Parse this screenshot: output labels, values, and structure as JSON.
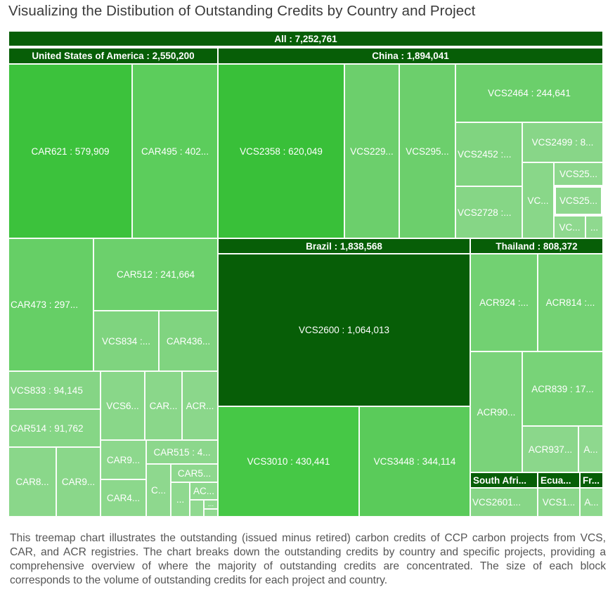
{
  "title": "Visualizing the Distibution of Outstanding Credits by Country and Project",
  "description": "This treemap chart illustrates the outstanding (issued minus retired) carbon credits of CCP carbon projects from VCS, CAR, and ACR registries. The chart breaks down the outstanding credits by country and specific projects, providing a comprehensive overview of where the majority of outstanding credits are concentrated. The size of each block corresponds to the volume of outstanding credits for each project and country.",
  "chart_data": {
    "type": "treemap",
    "root": {
      "label": "All : 7,252,761",
      "name": "All",
      "value": 7252761
    },
    "color_scale": {
      "low": "#8ed18e",
      "mid": "#3fc93f",
      "high": "#075e07"
    },
    "countries": [
      {
        "name": "United States of America",
        "label": "United States of America : 2,550,200",
        "value": 2550200,
        "projects": [
          {
            "label": "CAR621 : 579,909",
            "name": "CAR621",
            "value": 579909,
            "color": "#3cc23c"
          },
          {
            "label": "CAR495 : 402...",
            "name": "CAR495",
            "value": 402000,
            "color": "#5ccd5c"
          },
          {
            "label": "CAR473 : 297...",
            "name": "CAR473",
            "value": 297000,
            "color": "#66cf66"
          },
          {
            "label": "CAR512 : 241,664",
            "name": "CAR512",
            "value": 241664,
            "color": "#6cd06c"
          },
          {
            "label": "VCS834 :...",
            "name": "VCS834",
            "value": 121000,
            "color": "#7fd47f"
          },
          {
            "label": "CAR436...",
            "name": "CAR436",
            "value": 116000,
            "color": "#80d480"
          },
          {
            "label": "VCS833 : 94,145",
            "name": "VCS833",
            "value": 94145,
            "color": "#85d585"
          },
          {
            "label": "CAR514 : 91,762",
            "name": "CAR514",
            "value": 91762,
            "color": "#86d686"
          },
          {
            "label": "VCS6...",
            "name": "VCS6",
            "value": 73000,
            "color": "#89d789"
          },
          {
            "label": "CAR...",
            "name": "CAR",
            "value": 61000,
            "color": "#8ad78a"
          },
          {
            "label": "ACR...",
            "name": "ACR",
            "value": 54000,
            "color": "#8bd78b"
          },
          {
            "label": "CAR8...",
            "name": "CAR8",
            "value": 64000,
            "color": "#8ad78a"
          },
          {
            "label": "CAR9...",
            "name": "CAR9",
            "value": 60000,
            "color": "#8ad78a"
          },
          {
            "label": "CAR9...",
            "name": "CAR9",
            "value": 35000,
            "color": "#8dd88d"
          },
          {
            "label": "CAR515 : 4...",
            "name": "CAR515",
            "value": 44000,
            "color": "#8cd78c"
          },
          {
            "label": "CAR4...",
            "name": "CAR4",
            "value": 41000,
            "color": "#8cd88c"
          },
          {
            "label": "C...",
            "name": "C",
            "value": 21000,
            "color": "#8ed88e"
          },
          {
            "label": "CAR5...",
            "name": "CAR5",
            "value": 21000,
            "color": "#8ed88e"
          },
          {
            "label": "...",
            "name": "",
            "value": 12000,
            "color": "#8fd98f"
          },
          {
            "label": "AC...",
            "name": "AC",
            "value": 10000,
            "color": "#8fd98f"
          },
          {
            "label": "",
            "name": "",
            "value": 4000,
            "color": "#90d990"
          },
          {
            "label": "...",
            "name": "",
            "value": 3000,
            "color": "#90d990"
          },
          {
            "label": "",
            "name": "",
            "value": 3000,
            "color": "#90d990"
          }
        ]
      },
      {
        "name": "China",
        "label": "China : 1,894,041",
        "value": 1894041,
        "projects": [
          {
            "label": "VCS2358 : 620,049",
            "name": "VCS2358",
            "value": 620049,
            "color": "#39c039"
          },
          {
            "label": "VCS229...",
            "name": "VCS229",
            "value": 240000,
            "color": "#6ccf6c"
          },
          {
            "label": "VCS295...",
            "name": "VCS295",
            "value": 240000,
            "color": "#6ccf6c"
          },
          {
            "label": "VCS2464 : 244,641",
            "name": "VCS2464",
            "value": 244641,
            "color": "#6bcf6b"
          },
          {
            "label": "VCS2452 :...",
            "name": "VCS2452",
            "value": 117000,
            "color": "#80d480"
          },
          {
            "label": "VCS2728 :...",
            "name": "VCS2728",
            "value": 90000,
            "color": "#86d686"
          },
          {
            "label": "VCS2499 : 8...",
            "name": "VCS2499",
            "value": 80000,
            "color": "#88d688"
          },
          {
            "label": "VC...",
            "name": "VC",
            "value": 71000,
            "color": "#89d789"
          },
          {
            "label": "VCS25...",
            "name": "VCS25",
            "value": 27000,
            "color": "#8ed88e"
          },
          {
            "label": "VCS25...",
            "name": "VCS25",
            "value": 27000,
            "color": "#8ed88e"
          },
          {
            "label": "VC...",
            "name": "VC",
            "value": 14000,
            "color": "#8fd98f"
          },
          {
            "label": "...",
            "name": "",
            "value": 9000,
            "color": "#8fd98f"
          }
        ]
      },
      {
        "name": "Brazil",
        "label": "Brazil : 1,838,568",
        "value": 1838568,
        "projects": [
          {
            "label": "VCS2600 : 1,064,013",
            "name": "VCS2600",
            "value": 1064013,
            "color": "#075e07"
          },
          {
            "label": "VCS3010 : 430,441",
            "name": "VCS3010",
            "value": 430441,
            "color": "#46c846"
          },
          {
            "label": "VCS3448 : 344,114",
            "name": "VCS3448",
            "value": 344114,
            "color": "#5acb5a"
          }
        ]
      },
      {
        "name": "Thailand",
        "label": "Thailand : 808,372",
        "value": 808372,
        "projects": [
          {
            "label": "ACR924 :...",
            "name": "ACR924",
            "value": 215000,
            "color": "#72d172"
          },
          {
            "label": "ACR814 :...",
            "name": "ACR814",
            "value": 200000,
            "color": "#74d274"
          },
          {
            "label": "ACR90...",
            "name": "ACR90",
            "value": 155000,
            "color": "#7ad37a"
          },
          {
            "label": "ACR839 : 17...",
            "name": "ACR839",
            "value": 170000,
            "color": "#78d378"
          },
          {
            "label": "ACR937...",
            "name": "ACR937",
            "value": 48000,
            "color": "#8bd78b"
          },
          {
            "label": "A...",
            "name": "A",
            "value": 20000,
            "color": "#8ed88e"
          }
        ]
      },
      {
        "name": "South Africa",
        "label": "South Afri...",
        "value": 90000,
        "projects": [
          {
            "label": "VCS2601...",
            "name": "VCS2601",
            "value": 90000,
            "color": "#87d687"
          }
        ]
      },
      {
        "name": "Ecuador",
        "label": "Ecua...",
        "value": 55000,
        "projects": [
          {
            "label": "VCS1...",
            "name": "VCS1",
            "value": 55000,
            "color": "#8bd78b"
          }
        ]
      },
      {
        "name": "France",
        "label": "Fr...",
        "value": 30000,
        "projects": [
          {
            "label": "A...",
            "name": "A",
            "value": 30000,
            "color": "#8dd88d"
          }
        ]
      }
    ]
  }
}
